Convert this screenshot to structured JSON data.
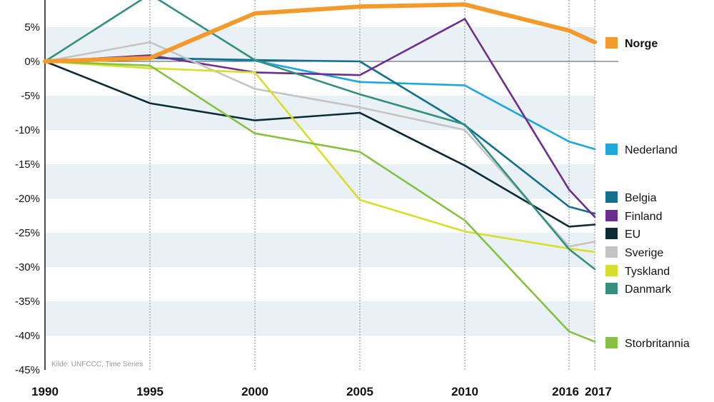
{
  "chart_data": {
    "type": "line",
    "title": "",
    "xlabel": "",
    "ylabel": "",
    "source": "Kilde: UNFCCC, Time Series",
    "x": [
      1990,
      1995,
      2000,
      2005,
      2010,
      2016,
      2017
    ],
    "x_tick_labels": [
      "1990",
      "1995",
      "2000",
      "2005",
      "2010",
      "2016",
      "2017"
    ],
    "ylim": [
      -45,
      9
    ],
    "y_ticks": [
      5,
      0,
      -5,
      -10,
      -15,
      -20,
      -25,
      -30,
      -35,
      -40,
      -45
    ],
    "y_tick_labels": [
      "5%",
      "0%",
      "-5%",
      "-10%",
      "-15%",
      "-20%",
      "-25%",
      "-30%",
      "-35%",
      "-40%",
      "-45%"
    ],
    "grid": "alternating horizontal bands, vertical dotted lines at x ticks",
    "legend_position": "right, labels at series end",
    "series": [
      {
        "name": "Norge",
        "color": "#f39a2b",
        "values": [
          0,
          0.5,
          7,
          8,
          8.3,
          4.5,
          2.8
        ]
      },
      {
        "name": "Nederland",
        "color": "#1ea6de",
        "values": [
          0,
          0.5,
          0.1,
          -3,
          -3.5,
          -11.7,
          -12.8
        ]
      },
      {
        "name": "Belgia",
        "color": "#12708f",
        "values": [
          0,
          0.5,
          0.2,
          0,
          -9.3,
          -21.2,
          -22.2
        ]
      },
      {
        "name": "Finland",
        "color": "#6c2e8f",
        "values": [
          0,
          0.9,
          -1.6,
          -2,
          6.2,
          -18.7,
          -22.7
        ]
      },
      {
        "name": "EU",
        "color": "#0d2b33",
        "values": [
          0,
          -6.1,
          -8.6,
          -7.5,
          -15.2,
          -24.1,
          -23.8
        ]
      },
      {
        "name": "Sverige",
        "color": "#c4c4c4",
        "values": [
          0,
          2.8,
          -4,
          -6.7,
          -10,
          -27,
          -26.3
        ]
      },
      {
        "name": "Tyskland",
        "color": "#d6df2a",
        "values": [
          0,
          -1,
          -1.6,
          -20.2,
          -24.8,
          -27.3,
          -27.8
        ]
      },
      {
        "name": "Danmark",
        "color": "#338f7e",
        "values": [
          0,
          9.8,
          0.2,
          -4.8,
          -9.2,
          -27.4,
          -30.3
        ]
      },
      {
        "name": "Storbritannia",
        "color": "#86c142",
        "values": [
          0,
          -0.6,
          -10.5,
          -13.2,
          -23.2,
          -39.4,
          -40.9
        ]
      }
    ],
    "legend": [
      {
        "name": "Norge",
        "color": "#f39a2b",
        "bold": true
      },
      {
        "name": "Nederland",
        "color": "#1ea6de"
      },
      {
        "name": "Belgia",
        "color": "#12708f"
      },
      {
        "name": "Finland",
        "color": "#6c2e8f"
      },
      {
        "name": "EU",
        "color": "#0d2b33"
      },
      {
        "name": "Sverige",
        "color": "#c4c4c4"
      },
      {
        "name": "Tyskland",
        "color": "#d6df2a"
      },
      {
        "name": "Danmark",
        "color": "#338f7e"
      },
      {
        "name": "Storbritannia",
        "color": "#86c142"
      }
    ]
  }
}
